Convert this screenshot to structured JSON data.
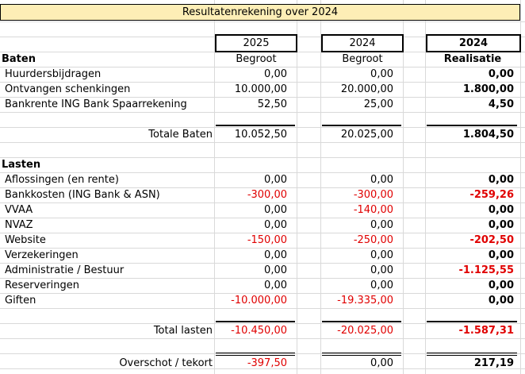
{
  "title": "Resultatenrekening over 2024",
  "columns": [
    {
      "year": "2025",
      "type": "Begroot"
    },
    {
      "year": "2024",
      "type": "Begroot"
    },
    {
      "year": "2024",
      "type": "Realisatie"
    }
  ],
  "baten": {
    "heading": "Baten",
    "rows": [
      {
        "label": "Huurdersbijdragen",
        "v1": "0,00",
        "v2": "0,00",
        "v3": "0,00"
      },
      {
        "label": "Ontvangen schenkingen",
        "v1": "10.000,00",
        "v2": "20.000,00",
        "v3": "1.800,00"
      },
      {
        "label": "Bankrente ING Bank Spaarrekening",
        "v1": "52,50",
        "v2": "25,00",
        "v3": "4,50"
      }
    ],
    "total": {
      "label": "Totale Baten",
      "v1": "10.052,50",
      "v2": "20.025,00",
      "v3": "1.804,50"
    }
  },
  "lasten": {
    "heading": "Lasten",
    "rows": [
      {
        "label": "Aflossingen (en rente)",
        "v1": "0,00",
        "v2": "0,00",
        "v3": "0,00"
      },
      {
        "label": "Bankkosten (ING Bank & ASN)",
        "v1": "-300,00",
        "v2": "-300,00",
        "v3": "-259,26"
      },
      {
        "label": "VVAA",
        "v1": "0,00",
        "v2": "-140,00",
        "v3": "0,00"
      },
      {
        "label": "NVAZ",
        "v1": "0,00",
        "v2": "0,00",
        "v3": "0,00"
      },
      {
        "label": "Website",
        "v1": "-150,00",
        "v2": "-250,00",
        "v3": "-202,50"
      },
      {
        "label": "Verzekeringen",
        "v1": "0,00",
        "v2": "0,00",
        "v3": "0,00"
      },
      {
        "label": "Administratie / Bestuur",
        "v1": "0,00",
        "v2": "0,00",
        "v3": "-1.125,55"
      },
      {
        "label": "Reserveringen",
        "v1": "0,00",
        "v2": "0,00",
        "v3": "0,00"
      },
      {
        "label": "Giften",
        "v1": "-10.000,00",
        "v2": "-19.335,00",
        "v3": "0,00"
      }
    ],
    "total": {
      "label": "Total lasten",
      "v1": "-10.450,00",
      "v2": "-20.025,00",
      "v3": "-1.587,31"
    }
  },
  "result": {
    "label": "Overschot / tekort",
    "v1": "-397,50",
    "v2": "0,00",
    "v3": "217,19"
  },
  "colors": {
    "title_bg": "#fdeeb6",
    "negative": "#e00000",
    "grid": "#d9d9d9"
  }
}
